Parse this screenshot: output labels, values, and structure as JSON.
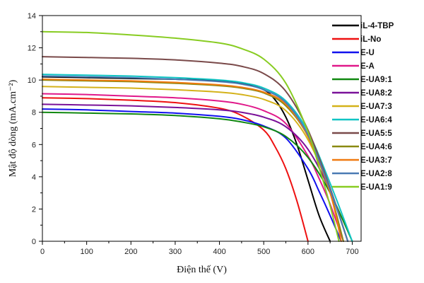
{
  "chart_data": {
    "type": "line",
    "title": "",
    "xlabel": "Điện thế (V)",
    "ylabel": "Mật độ dòng (mA.cm⁻²)",
    "xlim": [
      0,
      720
    ],
    "ylim": [
      0,
      14
    ],
    "xticks": [
      0,
      100,
      200,
      300,
      400,
      500,
      600,
      700
    ],
    "yticks": [
      0,
      2,
      4,
      6,
      8,
      10,
      12,
      14
    ],
    "legend_position": "top-right",
    "series": [
      {
        "name": "iL-4-TBP",
        "color": "#000000",
        "x": [
          0,
          100,
          200,
          300,
          400,
          450,
          500,
          525,
          550,
          575,
          600,
          625,
          650
        ],
        "y": [
          10.2,
          10.15,
          10.1,
          10.05,
          9.95,
          9.8,
          9.4,
          8.8,
          7.7,
          6.0,
          3.8,
          1.6,
          0
        ]
      },
      {
        "name": "iL-No",
        "color": "#ee1111",
        "x": [
          0,
          100,
          200,
          300,
          400,
          450,
          500,
          525,
          550,
          575,
          600
        ],
        "y": [
          8.9,
          8.85,
          8.75,
          8.6,
          8.25,
          7.8,
          6.9,
          5.9,
          4.5,
          2.5,
          0
        ]
      },
      {
        "name": "E-U",
        "color": "#1111ee",
        "x": [
          0,
          100,
          200,
          300,
          400,
          450,
          500,
          550,
          600,
          625,
          650,
          675
        ],
        "y": [
          8.2,
          8.15,
          8.05,
          7.95,
          7.75,
          7.55,
          7.15,
          6.4,
          4.5,
          3.1,
          1.6,
          0
        ]
      },
      {
        "name": "E-A",
        "color": "#e0188a",
        "x": [
          0,
          100,
          200,
          300,
          400,
          450,
          500,
          550,
          600,
          625,
          650,
          680
        ],
        "y": [
          9.15,
          9.1,
          9.0,
          8.9,
          8.7,
          8.5,
          8.1,
          7.3,
          5.3,
          3.9,
          2.3,
          0
        ]
      },
      {
        "name": "E-UA9:1",
        "color": "#118811",
        "x": [
          0,
          100,
          200,
          300,
          400,
          450,
          500,
          550,
          600,
          650,
          700
        ],
        "y": [
          8.0,
          7.95,
          7.9,
          7.8,
          7.6,
          7.4,
          7.1,
          6.5,
          5.2,
          3.0,
          0
        ]
      },
      {
        "name": "E-UA8:2",
        "color": "#7a1199",
        "x": [
          0,
          100,
          200,
          300,
          400,
          450,
          500,
          550,
          600,
          650,
          690
        ],
        "y": [
          8.5,
          8.45,
          8.4,
          8.3,
          8.15,
          8.0,
          7.7,
          7.1,
          5.7,
          3.1,
          0
        ]
      },
      {
        "name": "E-UA7:3",
        "color": "#d4b21a",
        "x": [
          0,
          100,
          200,
          300,
          400,
          450,
          500,
          550,
          600,
          650,
          690
        ],
        "y": [
          9.6,
          9.55,
          9.5,
          9.4,
          9.25,
          9.1,
          8.8,
          8.1,
          6.3,
          3.2,
          0
        ]
      },
      {
        "name": "E-UA6:4",
        "color": "#11c4c4",
        "x": [
          0,
          100,
          200,
          300,
          400,
          450,
          500,
          550,
          600,
          650,
          700
        ],
        "y": [
          10.35,
          10.3,
          10.25,
          10.15,
          10.0,
          9.85,
          9.5,
          8.7,
          6.8,
          3.6,
          0
        ]
      },
      {
        "name": "E-UA5:5",
        "color": "#7a4a4a",
        "x": [
          0,
          100,
          200,
          300,
          400,
          450,
          500,
          550,
          600,
          650,
          690
        ],
        "y": [
          11.45,
          11.4,
          11.35,
          11.25,
          11.05,
          10.85,
          10.4,
          9.3,
          6.9,
          3.3,
          0
        ]
      },
      {
        "name": "E-UA4:6",
        "color": "#8a8a11",
        "x": [
          0,
          100,
          200,
          300,
          400,
          450,
          500,
          550,
          600,
          650,
          680
        ],
        "y": [
          10.0,
          9.95,
          9.9,
          9.8,
          9.65,
          9.5,
          9.2,
          8.4,
          6.5,
          3.0,
          0
        ]
      },
      {
        "name": "E-UA3:7",
        "color": "#f07a11",
        "x": [
          0,
          100,
          200,
          300,
          400,
          450,
          500,
          550,
          600,
          650,
          675
        ],
        "y": [
          10.05,
          10.0,
          9.95,
          9.85,
          9.7,
          9.55,
          9.25,
          8.5,
          6.5,
          3.0,
          0
        ]
      },
      {
        "name": "E-UA2:8",
        "color": "#4a7ab4",
        "x": [
          0,
          100,
          200,
          300,
          400,
          450,
          500,
          550,
          600,
          650,
          690
        ],
        "y": [
          10.25,
          10.2,
          10.15,
          10.05,
          9.9,
          9.75,
          9.4,
          8.6,
          6.6,
          3.2,
          0
        ]
      },
      {
        "name": "E-UA1:9",
        "color": "#88cc22",
        "x": [
          0,
          100,
          200,
          300,
          400,
          450,
          500,
          550,
          600,
          625,
          650,
          670
        ],
        "y": [
          13.0,
          12.95,
          12.8,
          12.6,
          12.3,
          11.95,
          11.3,
          9.8,
          6.8,
          4.6,
          2.2,
          0
        ]
      }
    ]
  }
}
